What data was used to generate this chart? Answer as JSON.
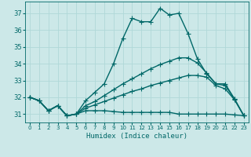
{
  "xlabel": "Humidex (Indice chaleur)",
  "background_color": "#cce8e8",
  "grid_color": "#b0d8d8",
  "line_color": "#006868",
  "xlim": [
    -0.5,
    23.5
  ],
  "ylim": [
    30.5,
    37.7
  ],
  "yticks": [
    31,
    32,
    33,
    34,
    35,
    36,
    37
  ],
  "xticks": [
    0,
    1,
    2,
    3,
    4,
    5,
    6,
    7,
    8,
    9,
    10,
    11,
    12,
    13,
    14,
    15,
    16,
    17,
    18,
    19,
    20,
    21,
    22,
    23
  ],
  "series": [
    [
      32.0,
      31.8,
      31.2,
      31.5,
      30.9,
      31.0,
      31.8,
      32.3,
      32.8,
      34.0,
      35.5,
      36.7,
      36.5,
      36.5,
      37.3,
      36.9,
      37.0,
      35.8,
      34.3,
      33.4,
      32.8,
      32.8,
      31.9,
      30.9
    ],
    [
      32.0,
      31.8,
      31.2,
      31.5,
      30.9,
      31.0,
      31.2,
      31.2,
      31.2,
      31.15,
      31.1,
      31.1,
      31.1,
      31.1,
      31.1,
      31.1,
      31.0,
      31.0,
      31.0,
      31.0,
      31.0,
      31.0,
      30.95,
      30.9
    ],
    [
      32.0,
      31.8,
      31.2,
      31.5,
      30.9,
      31.0,
      31.35,
      31.55,
      31.75,
      31.95,
      32.15,
      32.35,
      32.5,
      32.7,
      32.85,
      33.0,
      33.15,
      33.3,
      33.3,
      33.2,
      32.7,
      32.5,
      31.85,
      30.9
    ],
    [
      32.0,
      31.8,
      31.2,
      31.5,
      30.9,
      31.0,
      31.5,
      31.75,
      32.1,
      32.45,
      32.8,
      33.1,
      33.4,
      33.7,
      33.95,
      34.15,
      34.35,
      34.35,
      34.05,
      33.45,
      32.8,
      32.7,
      31.9,
      30.9
    ]
  ],
  "marker": "+",
  "markersize": 4,
  "linewidth": 1.0,
  "markeredgewidth": 0.8
}
